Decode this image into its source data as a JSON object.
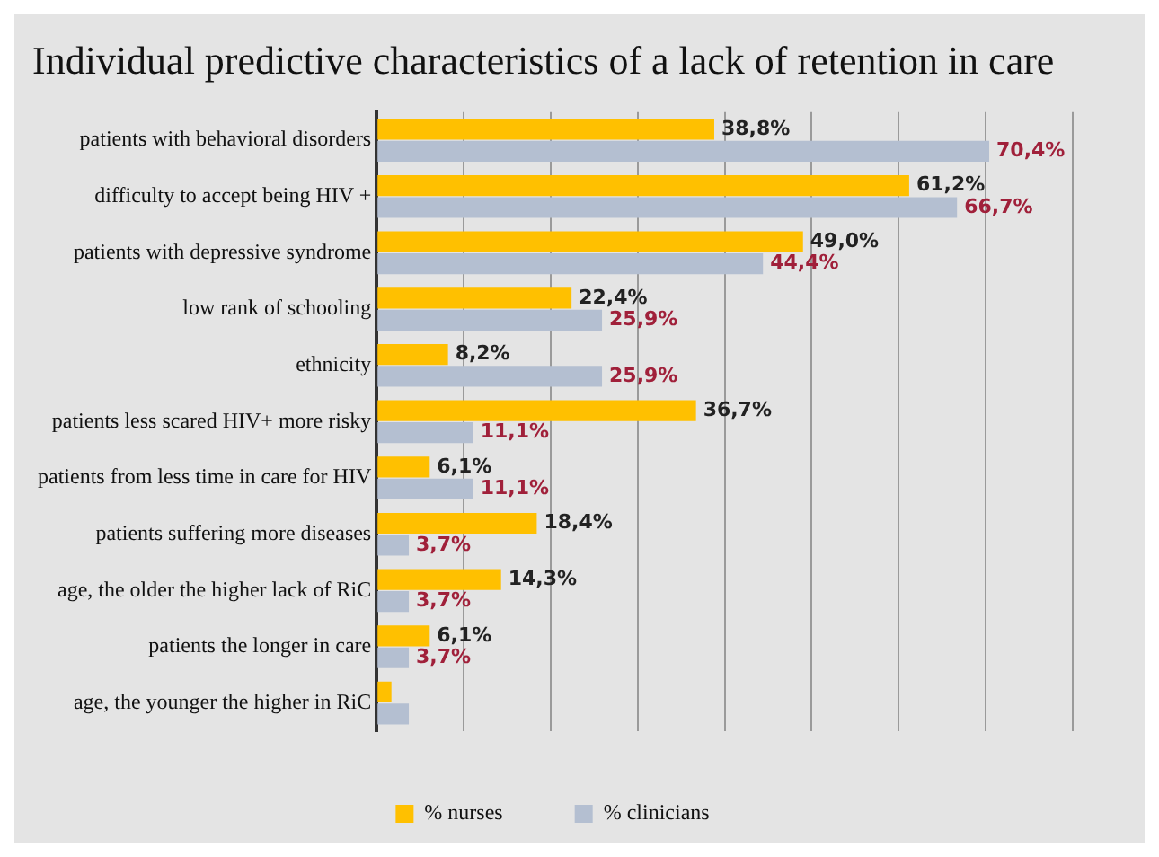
{
  "chart_data": {
    "type": "bar",
    "orientation": "horizontal",
    "title": "Individual predictive characteristics of a lack of retention in care",
    "categories": [
      "patients with behavioral disorders",
      "difficulty to accept being HIV +",
      "patients with depressive syndrome",
      "low rank of schooling",
      "ethnicity",
      "patients less scared HIV+ more risky",
      "patients from less time in care for HIV",
      "patients suffering more diseases",
      "age, the older the higher lack of RiC",
      "patients the longer in care",
      "age, the younger the higher in RiC"
    ],
    "series": [
      {
        "name": "% nurses",
        "color": "#ffc000",
        "values": [
          38.8,
          61.2,
          49.0,
          22.4,
          8.2,
          36.7,
          6.1,
          18.4,
          14.3,
          6.1,
          1.7
        ],
        "value_labels": [
          "38,8%",
          "61,2%",
          "49,0%",
          "22,4%",
          "8,2%",
          "36,7%",
          "6,1%",
          "18,4%",
          "14,3%",
          "6,1%",
          null
        ]
      },
      {
        "name": "% clinicians",
        "color": "#b4bfd1",
        "values": [
          70.4,
          66.7,
          44.4,
          25.9,
          25.9,
          11.1,
          11.1,
          3.7,
          3.7,
          3.7,
          3.7
        ],
        "value_labels": [
          "70,4%",
          "66,7%",
          "44,4%",
          "25,9%",
          "25,9%",
          "11,1%",
          "11,1%",
          "3,7%",
          "3,7%",
          "3,7%",
          null
        ]
      }
    ],
    "xlim": [
      0,
      80
    ],
    "xticks": [
      {
        "value": 0,
        "label": null
      },
      {
        "value": 10,
        "label": null
      },
      {
        "value": 20,
        "label": null
      },
      {
        "value": 30,
        "label": null
      },
      {
        "value": 40,
        "label": null
      },
      {
        "value": 50,
        "label": null
      },
      {
        "value": 60,
        "label": null
      },
      {
        "value": 70,
        "label": null
      },
      {
        "value": 80,
        "label": null
      }
    ],
    "grid": "x",
    "tick_labels": "y",
    "legend": "bottom"
  }
}
